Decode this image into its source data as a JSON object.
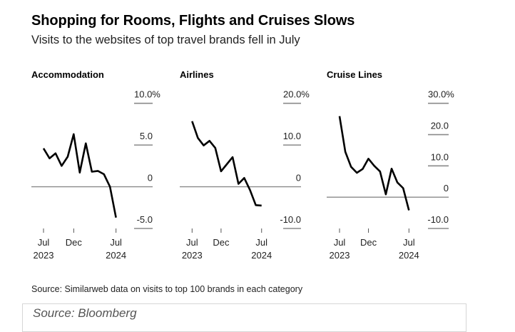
{
  "header": {
    "title": "Shopping for Rooms, Flights and Cruises Slows",
    "subtitle": "Visits to the websites of top travel brands fell in July"
  },
  "chart_data": [
    {
      "type": "line",
      "title": "Accommodation",
      "unit": "%",
      "x": [
        "Jul 2023",
        "Aug 2023",
        "Sep 2023",
        "Oct 2023",
        "Nov 2023",
        "Dec 2023",
        "Jan 2024",
        "Feb 2024",
        "Mar 2024",
        "Apr 2024",
        "May 2024",
        "Jun 2024",
        "Jul 2024"
      ],
      "values": [
        4.6,
        3.4,
        4.0,
        2.5,
        3.6,
        6.3,
        1.7,
        5.2,
        1.8,
        1.9,
        1.5,
        0.0,
        -3.7
      ],
      "ylim": [
        -5,
        10
      ],
      "yticks": [
        10,
        5,
        0,
        -5
      ],
      "ytick_labels": [
        "10.0%",
        "5.0",
        "0",
        "-5.0"
      ],
      "xticks": [
        {
          "index": 0,
          "label_line1": "Jul",
          "label_line2": "2023"
        },
        {
          "index": 5,
          "label_line1": "Dec",
          "label_line2": ""
        },
        {
          "index": 12,
          "label_line1": "Jul",
          "label_line2": "2024"
        }
      ]
    },
    {
      "type": "line",
      "title": "Airlines",
      "unit": "%",
      "x": [
        "Jul 2023",
        "Aug 2023",
        "Sep 2023",
        "Oct 2023",
        "Nov 2023",
        "Dec 2023",
        "Jan 2024",
        "Feb 2024",
        "Mar 2024",
        "Apr 2024",
        "May 2024",
        "Jun 2024",
        "Jul 2024"
      ],
      "values": [
        15.7,
        11.7,
        9.9,
        11.0,
        9.3,
        3.7,
        5.4,
        7.1,
        0.7,
        2.1,
        -0.8,
        -4.4,
        -4.5
      ],
      "ylim": [
        -10,
        20
      ],
      "yticks": [
        20,
        10,
        0,
        -10
      ],
      "ytick_labels": [
        "20.0%",
        "10.0",
        "0",
        "-10.0"
      ],
      "xticks": [
        {
          "index": 0,
          "label_line1": "Jul",
          "label_line2": "2023"
        },
        {
          "index": 5,
          "label_line1": "Dec",
          "label_line2": ""
        },
        {
          "index": 12,
          "label_line1": "Jul",
          "label_line2": "2024"
        }
      ]
    },
    {
      "type": "line",
      "title": "Cruise Lines",
      "unit": "%",
      "x": [
        "Jul 2023",
        "Aug 2023",
        "Sep 2023",
        "Oct 2023",
        "Nov 2023",
        "Dec 2023",
        "Jan 2024",
        "Feb 2024",
        "Mar 2024",
        "Apr 2024",
        "May 2024",
        "Jun 2024",
        "Jul 2024"
      ],
      "values": [
        25.9,
        14.5,
        9.7,
        7.8,
        9.0,
        12.3,
        10.0,
        8.2,
        0.9,
        9.1,
        4.7,
        2.9,
        -4.2
      ],
      "ylim": [
        -10,
        30
      ],
      "yticks": [
        30,
        20,
        10,
        0,
        -10
      ],
      "ytick_labels": [
        "30.0%",
        "20.0",
        "10.0",
        "0",
        "-10.0"
      ],
      "xticks": [
        {
          "index": 0,
          "label_line1": "Jul",
          "label_line2": "2023"
        },
        {
          "index": 5,
          "label_line1": "Dec",
          "label_line2": ""
        },
        {
          "index": 12,
          "label_line1": "Jul",
          "label_line2": "2024"
        }
      ]
    }
  ],
  "footer": {
    "note": "Source: Similarweb data on visits to top 100 brands in each category",
    "source": "Source: Bloomberg"
  }
}
